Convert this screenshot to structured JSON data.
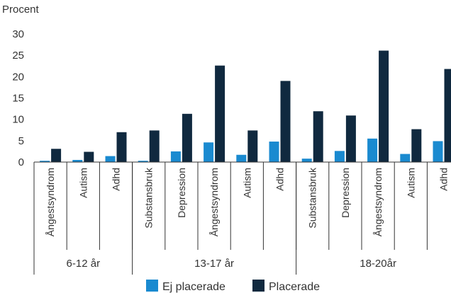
{
  "chart_data": {
    "type": "bar",
    "ylabel": "Procent",
    "ylim": [
      0,
      30
    ],
    "yticks": [
      0,
      5,
      10,
      15,
      20,
      25,
      30
    ],
    "grid": false,
    "legend_position": "bottom",
    "groups": [
      {
        "label": "6-12 år",
        "categories": [
          "Ångestsyndrom",
          "Autism",
          "Adhd"
        ]
      },
      {
        "label": "13-17 år",
        "categories": [
          "Substansbruk",
          "Depression",
          "Ångestsyndrom",
          "Autism",
          "Adhd"
        ]
      },
      {
        "label": "18-20år",
        "categories": [
          "Substansbruk",
          "Depression",
          "Ångestsyndrom",
          "Autism",
          "Adhd"
        ]
      }
    ],
    "categories": [
      "Ångestsyndrom",
      "Autism",
      "Adhd",
      "Substansbruk",
      "Depression",
      "Ångestsyndrom",
      "Autism",
      "Adhd",
      "Substansbruk",
      "Depression",
      "Ångestsyndrom",
      "Autism",
      "Adhd"
    ],
    "series": [
      {
        "name": "Ej placerade",
        "color": "#1a8ad0",
        "values": [
          0.3,
          0.5,
          1.4,
          0.3,
          2.5,
          4.6,
          1.7,
          4.8,
          0.8,
          2.6,
          5.5,
          1.9,
          4.9
        ]
      },
      {
        "name": "Placerade",
        "color": "#10293f",
        "values": [
          3.1,
          2.4,
          7.0,
          7.4,
          11.3,
          22.6,
          7.4,
          19.0,
          11.9,
          10.9,
          26.1,
          7.7,
          21.8
        ]
      }
    ]
  }
}
